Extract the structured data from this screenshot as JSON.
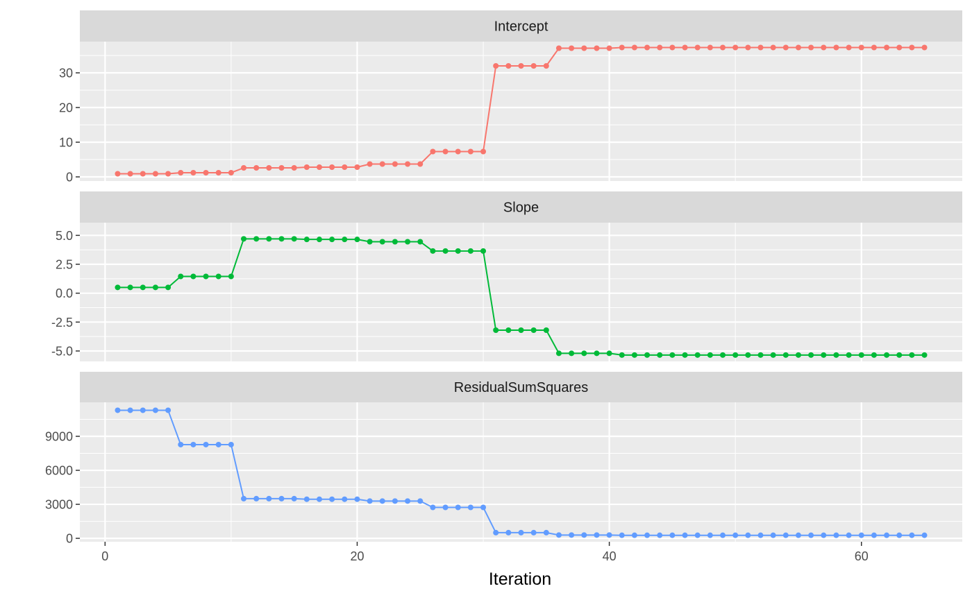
{
  "chart_data": {
    "type": "line",
    "xlabel": "Iteration",
    "xlim": [
      -2,
      68
    ],
    "x_ticks": [
      0,
      20,
      40,
      60
    ],
    "grid": true,
    "facets": [
      {
        "name": "Intercept",
        "color": "#F8766D",
        "ylim": [
          -1.2,
          39
        ],
        "y_ticks": [
          0,
          10,
          20,
          30
        ],
        "y_tick_labels": [
          "0",
          "10",
          "20",
          "30"
        ],
        "x": [
          1,
          2,
          3,
          4,
          5,
          6,
          7,
          8,
          9,
          10,
          11,
          12,
          13,
          14,
          15,
          16,
          17,
          18,
          19,
          20,
          21,
          22,
          23,
          24,
          25,
          26,
          27,
          28,
          29,
          30,
          31,
          32,
          33,
          34,
          35,
          36,
          37,
          38,
          39,
          40,
          41,
          42,
          43,
          44,
          45,
          46,
          47,
          48,
          49,
          50,
          51,
          52,
          53,
          54,
          55,
          56,
          57,
          58,
          59,
          60,
          61,
          62,
          63,
          64,
          65
        ],
        "values": [
          0.9,
          0.9,
          0.9,
          0.9,
          0.9,
          1.2,
          1.2,
          1.2,
          1.2,
          1.2,
          2.6,
          2.6,
          2.6,
          2.6,
          2.6,
          2.8,
          2.8,
          2.8,
          2.8,
          2.8,
          3.7,
          3.7,
          3.7,
          3.7,
          3.7,
          7.3,
          7.3,
          7.3,
          7.3,
          7.3,
          32.0,
          32.0,
          32.0,
          32.0,
          32.0,
          37.1,
          37.1,
          37.1,
          37.1,
          37.1,
          37.3,
          37.3,
          37.3,
          37.3,
          37.3,
          37.3,
          37.3,
          37.3,
          37.3,
          37.3,
          37.3,
          37.3,
          37.3,
          37.3,
          37.3,
          37.3,
          37.3,
          37.3,
          37.3,
          37.3,
          37.3,
          37.3,
          37.3,
          37.3,
          37.3
        ]
      },
      {
        "name": "Slope",
        "color": "#00BA38",
        "ylim": [
          -5.9,
          6.1
        ],
        "y_ticks": [
          -5.0,
          -2.5,
          0.0,
          2.5,
          5.0
        ],
        "y_tick_labels": [
          "-5.0",
          "-2.5",
          "0.0",
          "2.5",
          "5.0"
        ],
        "x": [
          1,
          2,
          3,
          4,
          5,
          6,
          7,
          8,
          9,
          10,
          11,
          12,
          13,
          14,
          15,
          16,
          17,
          18,
          19,
          20,
          21,
          22,
          23,
          24,
          25,
          26,
          27,
          28,
          29,
          30,
          31,
          32,
          33,
          34,
          35,
          36,
          37,
          38,
          39,
          40,
          41,
          42,
          43,
          44,
          45,
          46,
          47,
          48,
          49,
          50,
          51,
          52,
          53,
          54,
          55,
          56,
          57,
          58,
          59,
          60,
          61,
          62,
          63,
          64,
          65
        ],
        "values": [
          0.5,
          0.5,
          0.5,
          0.5,
          0.5,
          1.45,
          1.45,
          1.45,
          1.45,
          1.45,
          4.7,
          4.7,
          4.7,
          4.7,
          4.7,
          4.65,
          4.65,
          4.65,
          4.65,
          4.65,
          4.45,
          4.45,
          4.45,
          4.45,
          4.45,
          3.65,
          3.65,
          3.65,
          3.65,
          3.65,
          -3.2,
          -3.2,
          -3.2,
          -3.2,
          -3.2,
          -5.2,
          -5.2,
          -5.2,
          -5.2,
          -5.2,
          -5.35,
          -5.35,
          -5.35,
          -5.35,
          -5.35,
          -5.35,
          -5.35,
          -5.35,
          -5.35,
          -5.35,
          -5.35,
          -5.35,
          -5.35,
          -5.35,
          -5.35,
          -5.35,
          -5.35,
          -5.35,
          -5.35,
          -5.35,
          -5.35,
          -5.35,
          -5.35,
          -5.35,
          -5.35
        ]
      },
      {
        "name": "ResidualSumSquares",
        "color": "#619CFF",
        "ylim": [
          -300,
          12000
        ],
        "y_ticks": [
          0,
          3000,
          6000,
          9000
        ],
        "y_tick_labels": [
          "0",
          "3000",
          "6000",
          "9000"
        ],
        "x": [
          1,
          2,
          3,
          4,
          5,
          6,
          7,
          8,
          9,
          10,
          11,
          12,
          13,
          14,
          15,
          16,
          17,
          18,
          19,
          20,
          21,
          22,
          23,
          24,
          25,
          26,
          27,
          28,
          29,
          30,
          31,
          32,
          33,
          34,
          35,
          36,
          37,
          38,
          39,
          40,
          41,
          42,
          43,
          44,
          45,
          46,
          47,
          48,
          49,
          50,
          51,
          52,
          53,
          54,
          55,
          56,
          57,
          58,
          59,
          60,
          61,
          62,
          63,
          64,
          65
        ],
        "values": [
          11300,
          11300,
          11300,
          11300,
          11300,
          8270,
          8270,
          8270,
          8270,
          8270,
          3500,
          3500,
          3500,
          3500,
          3500,
          3450,
          3450,
          3450,
          3450,
          3450,
          3290,
          3290,
          3290,
          3290,
          3290,
          2730,
          2730,
          2730,
          2730,
          2730,
          500,
          500,
          500,
          500,
          500,
          290,
          290,
          290,
          290,
          290,
          270,
          270,
          270,
          270,
          270,
          270,
          270,
          270,
          270,
          270,
          270,
          270,
          270,
          270,
          270,
          270,
          270,
          270,
          270,
          270,
          270,
          270,
          270,
          270,
          270
        ]
      }
    ]
  },
  "x_tick_labels": [
    "0",
    "20",
    "40",
    "60"
  ],
  "colors": {
    "panel_bg": "#EBEBEB",
    "strip_bg": "#D9D9D9",
    "grid": "#FFFFFF"
  }
}
